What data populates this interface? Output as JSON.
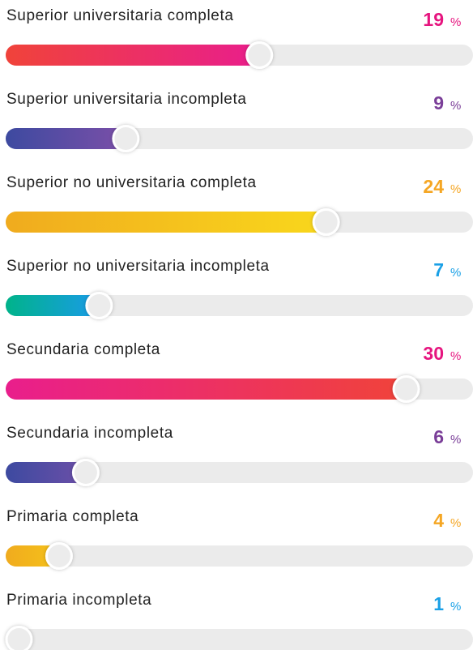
{
  "chart_data": {
    "type": "bar",
    "categories": [
      "Superior universitaria completa",
      "Superior universitaria incompleta",
      "Superior no universitaria completa",
      "Superior no universitaria incompleta",
      "Secundaria completa",
      "Secundaria incompleta",
      "Primaria completa",
      "Primaria incompleta"
    ],
    "values": [
      19,
      9,
      24,
      7,
      30,
      6,
      4,
      1
    ],
    "unit": "%",
    "xlim": [
      0,
      35
    ],
    "colors": [
      [
        "#f0433a",
        "#e91e8c"
      ],
      [
        "#3d4aa0",
        "#7b4fa8"
      ],
      [
        "#f0ab1e",
        "#f9d71c"
      ],
      [
        "#00b38a",
        "#1a9be8"
      ],
      [
        "#e91e8c",
        "#f0433a"
      ],
      [
        "#3d4aa0",
        "#6c4fa8"
      ],
      [
        "#f0ab1e",
        "#f5c21a"
      ],
      [
        "#1a8fe0",
        "#1aa0e6"
      ]
    ],
    "label_colors": [
      "#e6157f",
      "#7a3e98",
      "#f5a623",
      "#1aa0e6",
      "#e6157f",
      "#7a3e98",
      "#f5a623",
      "#1aa0e6"
    ],
    "track_color": "#ebebeb"
  }
}
